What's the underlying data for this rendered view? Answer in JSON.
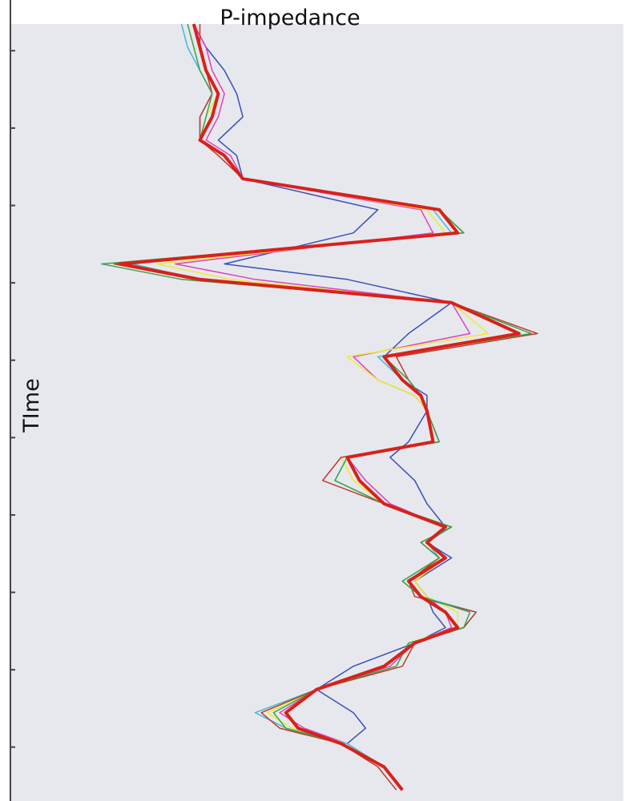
{
  "chart_data": {
    "type": "line",
    "orientation": "vertical-depth",
    "title": "P-impedance",
    "ylabel": "TIme",
    "xlabel": "",
    "grid": false,
    "legend": "none",
    "time_range": [
      0,
      100
    ],
    "impedance_range": [
      0,
      100
    ],
    "tick_positions": [
      2,
      12,
      22,
      32,
      42,
      52,
      62,
      72,
      82,
      92
    ],
    "colors": {
      "background": "#e6e8ee",
      "axis": "#444444",
      "red": "#d8211a",
      "green": "#3aa548",
      "blue": "#3b4fb5",
      "magenta": "#e040c0",
      "yellow": "#ecec2e",
      "cyan": "#3fbcd8",
      "brown": "#c0392b"
    },
    "time": [
      0,
      3,
      6,
      9,
      12,
      15,
      17,
      20,
      24,
      27,
      31,
      33,
      36,
      40,
      43,
      46,
      48,
      50,
      54,
      56,
      59,
      62,
      65,
      67,
      69,
      72,
      74,
      76,
      78,
      80,
      83,
      86,
      89,
      91,
      93,
      96,
      99
    ],
    "series": [
      {
        "color": "blue",
        "stroke_width": 1.5,
        "values": [
          30,
          32,
          35,
          37,
          38,
          34,
          37,
          38,
          60,
          56,
          35,
          55,
          72,
          65,
          61,
          64,
          68,
          68,
          65,
          62,
          66,
          68,
          71,
          68,
          72,
          66,
          68,
          69,
          71,
          66,
          56,
          50,
          56,
          58,
          55,
          61,
          64
        ]
      },
      {
        "color": "magenta",
        "stroke_width": 1.5,
        "values": [
          30,
          32,
          33,
          35,
          34,
          32,
          36,
          38,
          67,
          69,
          27,
          40,
          72,
          75,
          56,
          60,
          66,
          68,
          70,
          55,
          58,
          62,
          71,
          68,
          71,
          66,
          68,
          71,
          72,
          66,
          62,
          50,
          44,
          48,
          55,
          61,
          64
        ]
      },
      {
        "color": "yellow",
        "stroke_width": 1.5,
        "values": [
          30,
          31,
          32,
          34,
          32,
          31,
          35,
          38,
          68,
          71,
          24,
          36,
          72,
          78,
          55,
          60,
          66,
          68,
          69,
          54,
          56,
          61,
          72,
          68,
          71,
          66,
          68,
          73,
          73,
          65,
          63,
          50,
          42,
          46,
          55,
          61,
          64
        ]
      },
      {
        "color": "cyan",
        "stroke_width": 1.5,
        "values": [
          28,
          29,
          31,
          33,
          31,
          31,
          35,
          38,
          69,
          72,
          20,
          31,
          72,
          83,
          60,
          64,
          67,
          68,
          70,
          55,
          53,
          61,
          72,
          68,
          70,
          64,
          67,
          76,
          74,
          65,
          63,
          50,
          40,
          45,
          55,
          61,
          64
        ]
      },
      {
        "color": "brown",
        "stroke_width": 1.5,
        "values": [
          31,
          31,
          32,
          33,
          31,
          31,
          34,
          38,
          70,
          74,
          17,
          30,
          72,
          86,
          63,
          65,
          67,
          68,
          70,
          54,
          51,
          61,
          72,
          67,
          70,
          65,
          66,
          76,
          74,
          66,
          64,
          50,
          41,
          44,
          54,
          60,
          63
        ]
      },
      {
        "color": "green",
        "stroke_width": 1.5,
        "values": [
          29,
          30,
          31,
          33,
          32,
          31,
          35,
          38,
          70,
          74,
          15,
          28,
          72,
          85,
          61,
          65,
          67,
          68,
          70,
          55,
          53,
          61,
          72,
          67,
          70,
          64,
          67,
          75,
          74,
          65,
          63,
          50,
          43,
          45,
          54,
          61,
          64
        ]
      },
      {
        "color": "red",
        "stroke_width": 4,
        "values": [
          30,
          31,
          32,
          34,
          33,
          31,
          35,
          38,
          70,
          73,
          18,
          31,
          72,
          83,
          61,
          64,
          67,
          68,
          69,
          55,
          57,
          61,
          71,
          68,
          71,
          65,
          67,
          71,
          73,
          66,
          61,
          50,
          45,
          47,
          54,
          61,
          64
        ]
      }
    ]
  }
}
